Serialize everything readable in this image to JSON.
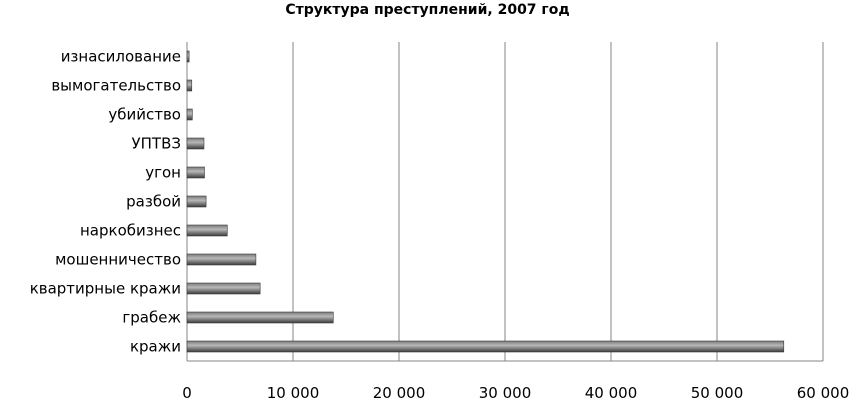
{
  "chart_data": {
    "type": "bar",
    "orientation": "horizontal",
    "title": "Структура преступлений, 2007 год",
    "xlabel": "",
    "ylabel": "",
    "categories": [
      "кражи",
      "грабеж",
      "квартирные кражи",
      "мошенничество",
      "наркобизнес",
      "разбой",
      "угон",
      "УПТВЗ",
      "убийство",
      "вымогательство",
      "изнасилование"
    ],
    "values": [
      56300,
      13800,
      6900,
      6500,
      3800,
      1800,
      1650,
      1600,
      500,
      450,
      200
    ],
    "xlim": [
      0,
      60000
    ],
    "ticks": [
      0,
      10000,
      20000,
      30000,
      40000,
      50000,
      60000
    ],
    "tick_labels": [
      "0",
      "10 000",
      "20 000",
      "30 000",
      "40 000",
      "50 000",
      "60 000"
    ],
    "grid": "vertical",
    "legend": "none",
    "colors": {
      "bar_dark": "#3a3a3a",
      "bar_mid": "#7a7a7a",
      "bar_light": "#b8b8b8",
      "grid": "#868686",
      "axis": "#868686"
    }
  }
}
